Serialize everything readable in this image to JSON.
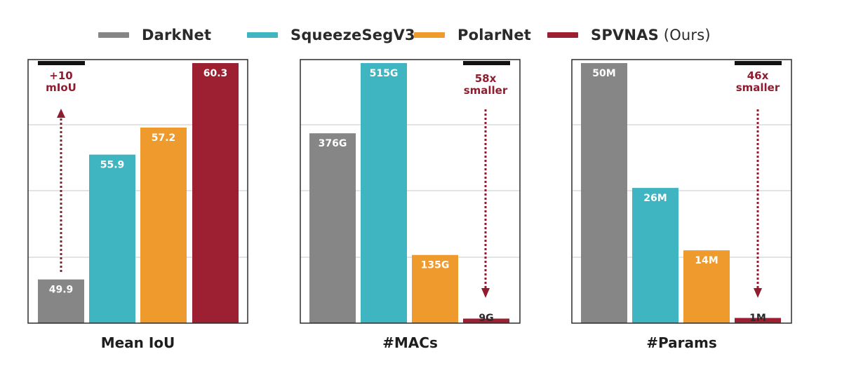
{
  "colors": {
    "darknet": "#868686",
    "squeezeseg": "#40b5c2",
    "polarnet": "#ee9a2c",
    "spvnas": "#9c1f32",
    "annotation": "#8d1d2f",
    "grid": "#c8c8c8",
    "frame": "#2b2b2b"
  },
  "legend": [
    {
      "label": "DarkNet",
      "suffix": "",
      "color_key": "darknet"
    },
    {
      "label": "SqueezeSegV3",
      "suffix": "",
      "color_key": "squeezeseg"
    },
    {
      "label": "PolarNet",
      "suffix": "",
      "color_key": "polarnet"
    },
    {
      "label": "SPVNAS",
      "suffix": " (Ours)",
      "color_key": "spvnas"
    }
  ],
  "chart_data": [
    {
      "type": "bar",
      "title": "Mean IoU",
      "categories": [
        "DarkNet",
        "SqueezeSegV3",
        "PolarNet",
        "SPVNAS"
      ],
      "values": [
        49.9,
        55.9,
        57.2,
        60.3
      ],
      "value_labels": [
        "49.9",
        "55.9",
        "57.2",
        "60.3"
      ],
      "ylim": [
        47.8,
        60.3
      ],
      "grid": true,
      "annotation": {
        "lines": [
          "+10",
          "mIoU"
        ],
        "direction": "up"
      }
    },
    {
      "type": "bar",
      "title": "#MACs",
      "categories": [
        "DarkNet",
        "SqueezeSegV3",
        "PolarNet",
        "SPVNAS"
      ],
      "values": [
        376,
        515,
        135,
        9
      ],
      "value_labels": [
        "376G",
        "515G",
        "135G",
        "9G"
      ],
      "ylim": [
        0,
        515
      ],
      "grid": true,
      "annotation": {
        "lines": [
          "58x",
          "smaller"
        ],
        "direction": "down"
      }
    },
    {
      "type": "bar",
      "title": "#Params",
      "categories": [
        "DarkNet",
        "SqueezeSegV3",
        "PolarNet",
        "SPVNAS"
      ],
      "values": [
        50,
        26,
        14,
        1
      ],
      "value_labels": [
        "50M",
        "26M",
        "14M",
        "1M"
      ],
      "ylim": [
        0,
        50
      ],
      "grid": true,
      "annotation": {
        "lines": [
          "46x",
          "smaller"
        ],
        "direction": "down"
      }
    }
  ]
}
